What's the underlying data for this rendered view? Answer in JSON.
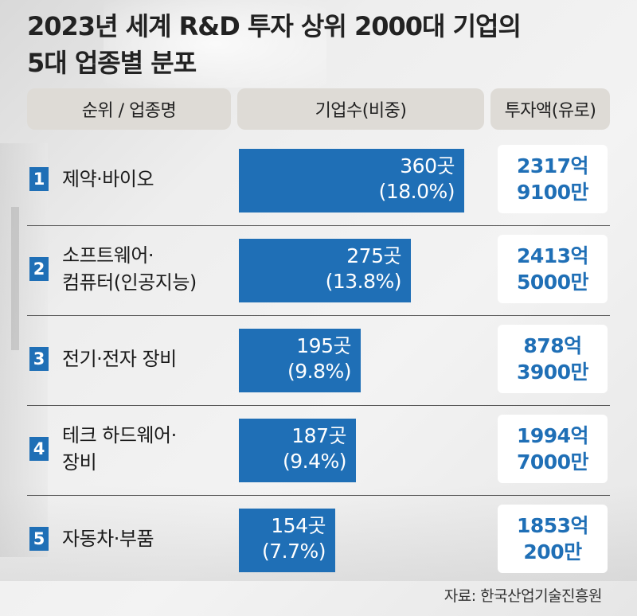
{
  "title_line1": "2023년 세계 R&D 투자 상위 2000대 기업의",
  "title_line2": "5대 업종별 분포",
  "headers": {
    "rank_industry": "순위 / 업종명",
    "company_count": "기업수(비중)",
    "investment": "투자액(유로)"
  },
  "chart_data": {
    "type": "bar",
    "categories": [
      "제약·바이오",
      "소프트웨어·컴퓨터(인공지능)",
      "전기·전자 장비",
      "테크 하드웨어·장비",
      "자동차·부품"
    ],
    "values": [
      360,
      275,
      195,
      187,
      154
    ],
    "value_unit": "곳",
    "shares_percent": [
      18.0,
      13.8,
      9.8,
      9.4,
      7.7
    ],
    "bar_color": "#1f6fb6"
  },
  "rows": [
    {
      "rank": "1",
      "name_lines": [
        "제약·바이오"
      ],
      "count_label": "360곳",
      "share_label": "(18.0%)",
      "invest_lines": [
        "2317억",
        "9100만"
      ]
    },
    {
      "rank": "2",
      "name_lines": [
        "소프트웨어·",
        "컴퓨터(인공지능)"
      ],
      "count_label": "275곳",
      "share_label": "(13.8%)",
      "invest_lines": [
        "2413억",
        "5000만"
      ]
    },
    {
      "rank": "3",
      "name_lines": [
        "전기·전자 장비"
      ],
      "count_label": "195곳",
      "share_label": "(9.8%)",
      "invest_lines": [
        "878억",
        "3900만"
      ]
    },
    {
      "rank": "4",
      "name_lines": [
        "테크 하드웨어·",
        "장비"
      ],
      "count_label": "187곳",
      "share_label": "(9.4%)",
      "invest_lines": [
        "1994억",
        "7000만"
      ]
    },
    {
      "rank": "5",
      "name_lines": [
        "자동차·부품"
      ],
      "count_label": "154곳",
      "share_label": "(7.7%)",
      "invest_lines": [
        "1853억",
        "200만"
      ]
    }
  ],
  "source": "자료: 한국산업기술진흥원",
  "colors": {
    "accent": "#1f6fb6",
    "header_bg": "#dedbd6"
  }
}
